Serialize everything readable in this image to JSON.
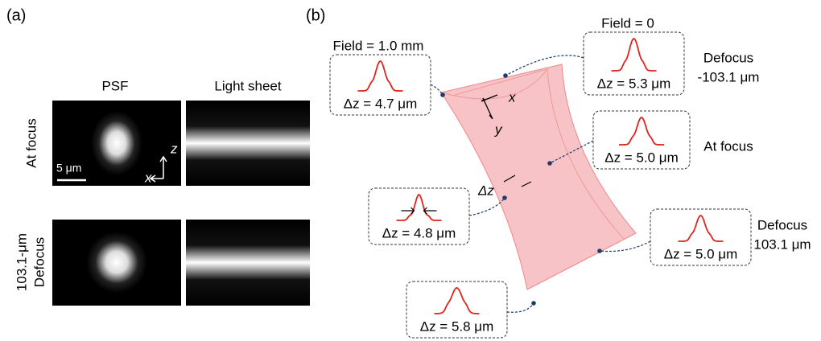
{
  "panel_a": {
    "label": "(a)",
    "columns": [
      "PSF",
      "Light sheet"
    ],
    "rows": [
      [
        "At focus"
      ],
      [
        "103.1-μm",
        "Defocus"
      ]
    ],
    "scale_bar": "5 μm",
    "axis_z": "z",
    "axis_x": "x"
  },
  "panel_b": {
    "label": "(b)",
    "axis_x": "x",
    "axis_y": "y",
    "width_label": "Δz",
    "callouts": [
      "Δz = 4.7 μm",
      "Δz = 5.3 μm",
      "Δz = 5.0 μm",
      "Δz = 4.8 μm",
      "Δz = 5.0 μm",
      "Δz = 5.8 μm"
    ],
    "annotations": [
      [
        "Field = 1.0 mm"
      ],
      [
        "Field = 0"
      ],
      [
        "Defocus",
        "-103.1 μm"
      ],
      [
        "At focus"
      ],
      [
        "Defocus",
        "103.1 μm"
      ]
    ]
  }
}
